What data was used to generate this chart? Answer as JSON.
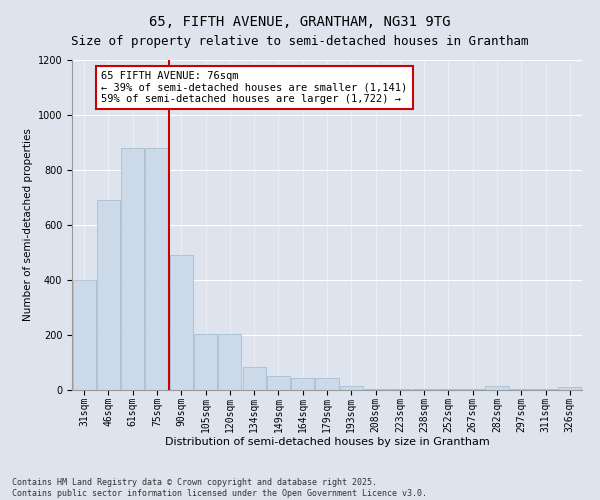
{
  "title": "65, FIFTH AVENUE, GRANTHAM, NG31 9TG",
  "subtitle": "Size of property relative to semi-detached houses in Grantham",
  "xlabel": "Distribution of semi-detached houses by size in Grantham",
  "ylabel": "Number of semi-detached properties",
  "categories": [
    "31sqm",
    "46sqm",
    "61sqm",
    "75sqm",
    "90sqm",
    "105sqm",
    "120sqm",
    "134sqm",
    "149sqm",
    "164sqm",
    "179sqm",
    "193sqm",
    "208sqm",
    "223sqm",
    "238sqm",
    "252sqm",
    "267sqm",
    "282sqm",
    "297sqm",
    "311sqm",
    "326sqm"
  ],
  "values": [
    400,
    690,
    880,
    880,
    490,
    205,
    205,
    85,
    50,
    45,
    45,
    15,
    5,
    5,
    5,
    5,
    5,
    15,
    5,
    5,
    10
  ],
  "bar_color": "#ccd9e8",
  "bar_edgecolor": "#a0b8d0",
  "property_line_x": 3.5,
  "property_line_color": "#cc0000",
  "annotation_text": "65 FIFTH AVENUE: 76sqm\n← 39% of semi-detached houses are smaller (1,141)\n59% of semi-detached houses are larger (1,722) →",
  "annotation_box_facecolor": "#ffffff",
  "annotation_box_edgecolor": "#cc0000",
  "ylim": [
    0,
    1200
  ],
  "yticks": [
    0,
    200,
    400,
    600,
    800,
    1000,
    1200
  ],
  "background_color": "#dde4ee",
  "plot_background_color": "#dde4ee",
  "footer_text": "Contains HM Land Registry data © Crown copyright and database right 2025.\nContains public sector information licensed under the Open Government Licence v3.0.",
  "title_fontsize": 10,
  "subtitle_fontsize": 9,
  "xlabel_fontsize": 8,
  "ylabel_fontsize": 7.5,
  "tick_fontsize": 7,
  "annotation_fontsize": 7.5,
  "footer_fontsize": 6
}
